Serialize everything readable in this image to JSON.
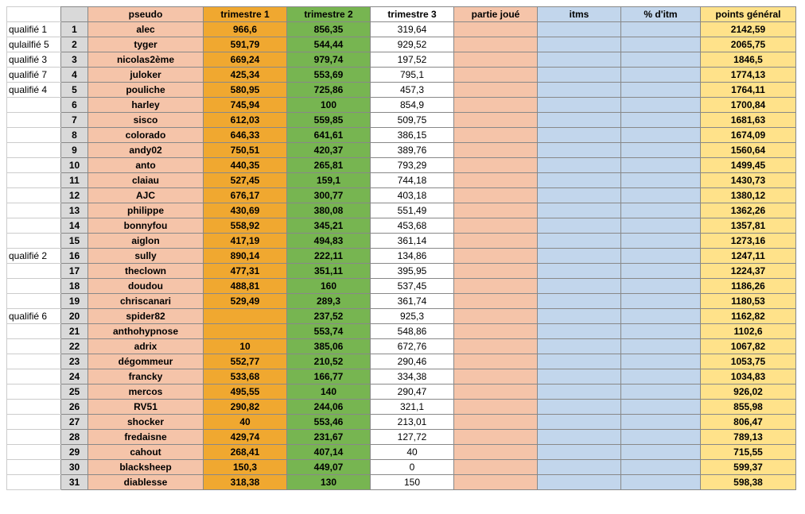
{
  "colors": {
    "grey": "#d9d9d9",
    "salmon": "#f5c4a9",
    "orange": "#f0a830",
    "green": "#77b551",
    "white": "#ffffff",
    "blue": "#c2d6ec",
    "yellow": "#ffe28a"
  },
  "headers": {
    "pseudo": "pseudo",
    "t1": "trimestre 1",
    "t2": "trimestre 2",
    "t3": "trimestre 3",
    "pj": "partie joué",
    "itms": "itms",
    "pct": "% d'itm",
    "pts": "points général"
  },
  "rows": [
    {
      "qual": "qualifié 1",
      "n": "1",
      "pseudo": "alec",
      "t1": "966,6",
      "t2": "856,35",
      "t3": "319,64",
      "pts": "2142,59"
    },
    {
      "qual": "qulailfié 5",
      "n": "2",
      "pseudo": "tyger",
      "t1": "591,79",
      "t2": "544,44",
      "t3": "929,52",
      "pts": "2065,75"
    },
    {
      "qual": "qualifié 3",
      "n": "3",
      "pseudo": "nicolas2ème",
      "t1": "669,24",
      "t2": "979,74",
      "t3": "197,52",
      "pts": "1846,5"
    },
    {
      "qual": "qualifié 7",
      "n": "4",
      "pseudo": "juloker",
      "t1": "425,34",
      "t2": "553,69",
      "t3": "795,1",
      "pts": "1774,13"
    },
    {
      "qual": "qualifié 4",
      "n": "5",
      "pseudo": "pouliche",
      "t1": "580,95",
      "t2": "725,86",
      "t3": "457,3",
      "pts": "1764,11"
    },
    {
      "qual": "",
      "n": "6",
      "pseudo": "harley",
      "t1": "745,94",
      "t2": "100",
      "t3": "854,9",
      "pts": "1700,84"
    },
    {
      "qual": "",
      "n": "7",
      "pseudo": "sisco",
      "t1": "612,03",
      "t2": "559,85",
      "t3": "509,75",
      "pts": "1681,63"
    },
    {
      "qual": "",
      "n": "8",
      "pseudo": "colorado",
      "t1": "646,33",
      "t2": "641,61",
      "t3": "386,15",
      "pts": "1674,09"
    },
    {
      "qual": "",
      "n": "9",
      "pseudo": "andy02",
      "t1": "750,51",
      "t2": "420,37",
      "t3": "389,76",
      "pts": "1560,64"
    },
    {
      "qual": "",
      "n": "10",
      "pseudo": "anto",
      "t1": "440,35",
      "t2": "265,81",
      "t3": "793,29",
      "pts": "1499,45"
    },
    {
      "qual": "",
      "n": "11",
      "pseudo": "claiau",
      "t1": "527,45",
      "t2": "159,1",
      "t3": "744,18",
      "pts": "1430,73"
    },
    {
      "qual": "",
      "n": "12",
      "pseudo": "AJC",
      "t1": "676,17",
      "t2": "300,77",
      "t3": "403,18",
      "pts": "1380,12"
    },
    {
      "qual": "",
      "n": "13",
      "pseudo": "philippe",
      "t1": "430,69",
      "t2": "380,08",
      "t3": "551,49",
      "pts": "1362,26"
    },
    {
      "qual": "",
      "n": "14",
      "pseudo": "bonnyfou",
      "t1": "558,92",
      "t2": "345,21",
      "t3": "453,68",
      "pts": "1357,81"
    },
    {
      "qual": "",
      "n": "15",
      "pseudo": "aiglon",
      "t1": "417,19",
      "t2": "494,83",
      "t3": "361,14",
      "pts": "1273,16"
    },
    {
      "qual": "qualifié 2",
      "n": "16",
      "pseudo": "sully",
      "t1": "890,14",
      "t2": "222,11",
      "t3": "134,86",
      "pts": "1247,11"
    },
    {
      "qual": "",
      "n": "17",
      "pseudo": "theclown",
      "t1": "477,31",
      "t2": "351,11",
      "t3": "395,95",
      "pts": "1224,37"
    },
    {
      "qual": "",
      "n": "18",
      "pseudo": "doudou",
      "t1": "488,81",
      "t2": "160",
      "t3": "537,45",
      "pts": "1186,26"
    },
    {
      "qual": "",
      "n": "19",
      "pseudo": "chriscanari",
      "t1": "529,49",
      "t2": "289,3",
      "t3": "361,74",
      "pts": "1180,53"
    },
    {
      "qual": "qualifié 6",
      "n": "20",
      "pseudo": "spider82",
      "t1": "",
      "t2": "237,52",
      "t3": "925,3",
      "pts": "1162,82"
    },
    {
      "qual": "",
      "n": "21",
      "pseudo": "anthohypnose",
      "t1": "",
      "t2": "553,74",
      "t3": "548,86",
      "pts": "1102,6"
    },
    {
      "qual": "",
      "n": "22",
      "pseudo": "adrix",
      "t1": "10",
      "t2": "385,06",
      "t3": "672,76",
      "pts": "1067,82"
    },
    {
      "qual": "",
      "n": "23",
      "pseudo": "dégommeur",
      "t1": "552,77",
      "t2": "210,52",
      "t3": "290,46",
      "pts": "1053,75"
    },
    {
      "qual": "",
      "n": "24",
      "pseudo": "francky",
      "t1": "533,68",
      "t2": "166,77",
      "t3": "334,38",
      "pts": "1034,83"
    },
    {
      "qual": "",
      "n": "25",
      "pseudo": "mercos",
      "t1": "495,55",
      "t2": "140",
      "t3": "290,47",
      "pts": "926,02"
    },
    {
      "qual": "",
      "n": "26",
      "pseudo": "RV51",
      "t1": "290,82",
      "t2": "244,06",
      "t3": "321,1",
      "pts": "855,98"
    },
    {
      "qual": "",
      "n": "27",
      "pseudo": "shocker",
      "t1": "40",
      "t2": "553,46",
      "t3": "213,01",
      "pts": "806,47"
    },
    {
      "qual": "",
      "n": "28",
      "pseudo": "fredaisne",
      "t1": "429,74",
      "t2": "231,67",
      "t3": "127,72",
      "pts": "789,13"
    },
    {
      "qual": "",
      "n": "29",
      "pseudo": "cahout",
      "t1": "268,41",
      "t2": "407,14",
      "t3": "40",
      "pts": "715,55"
    },
    {
      "qual": "",
      "n": "30",
      "pseudo": "blacksheep",
      "t1": "150,3",
      "t2": "449,07",
      "t3": "0",
      "pts": "599,37"
    },
    {
      "qual": "",
      "n": "31",
      "pseudo": "diablesse",
      "t1": "318,38",
      "t2": "130",
      "t3": "150",
      "pts": "598,38"
    }
  ]
}
